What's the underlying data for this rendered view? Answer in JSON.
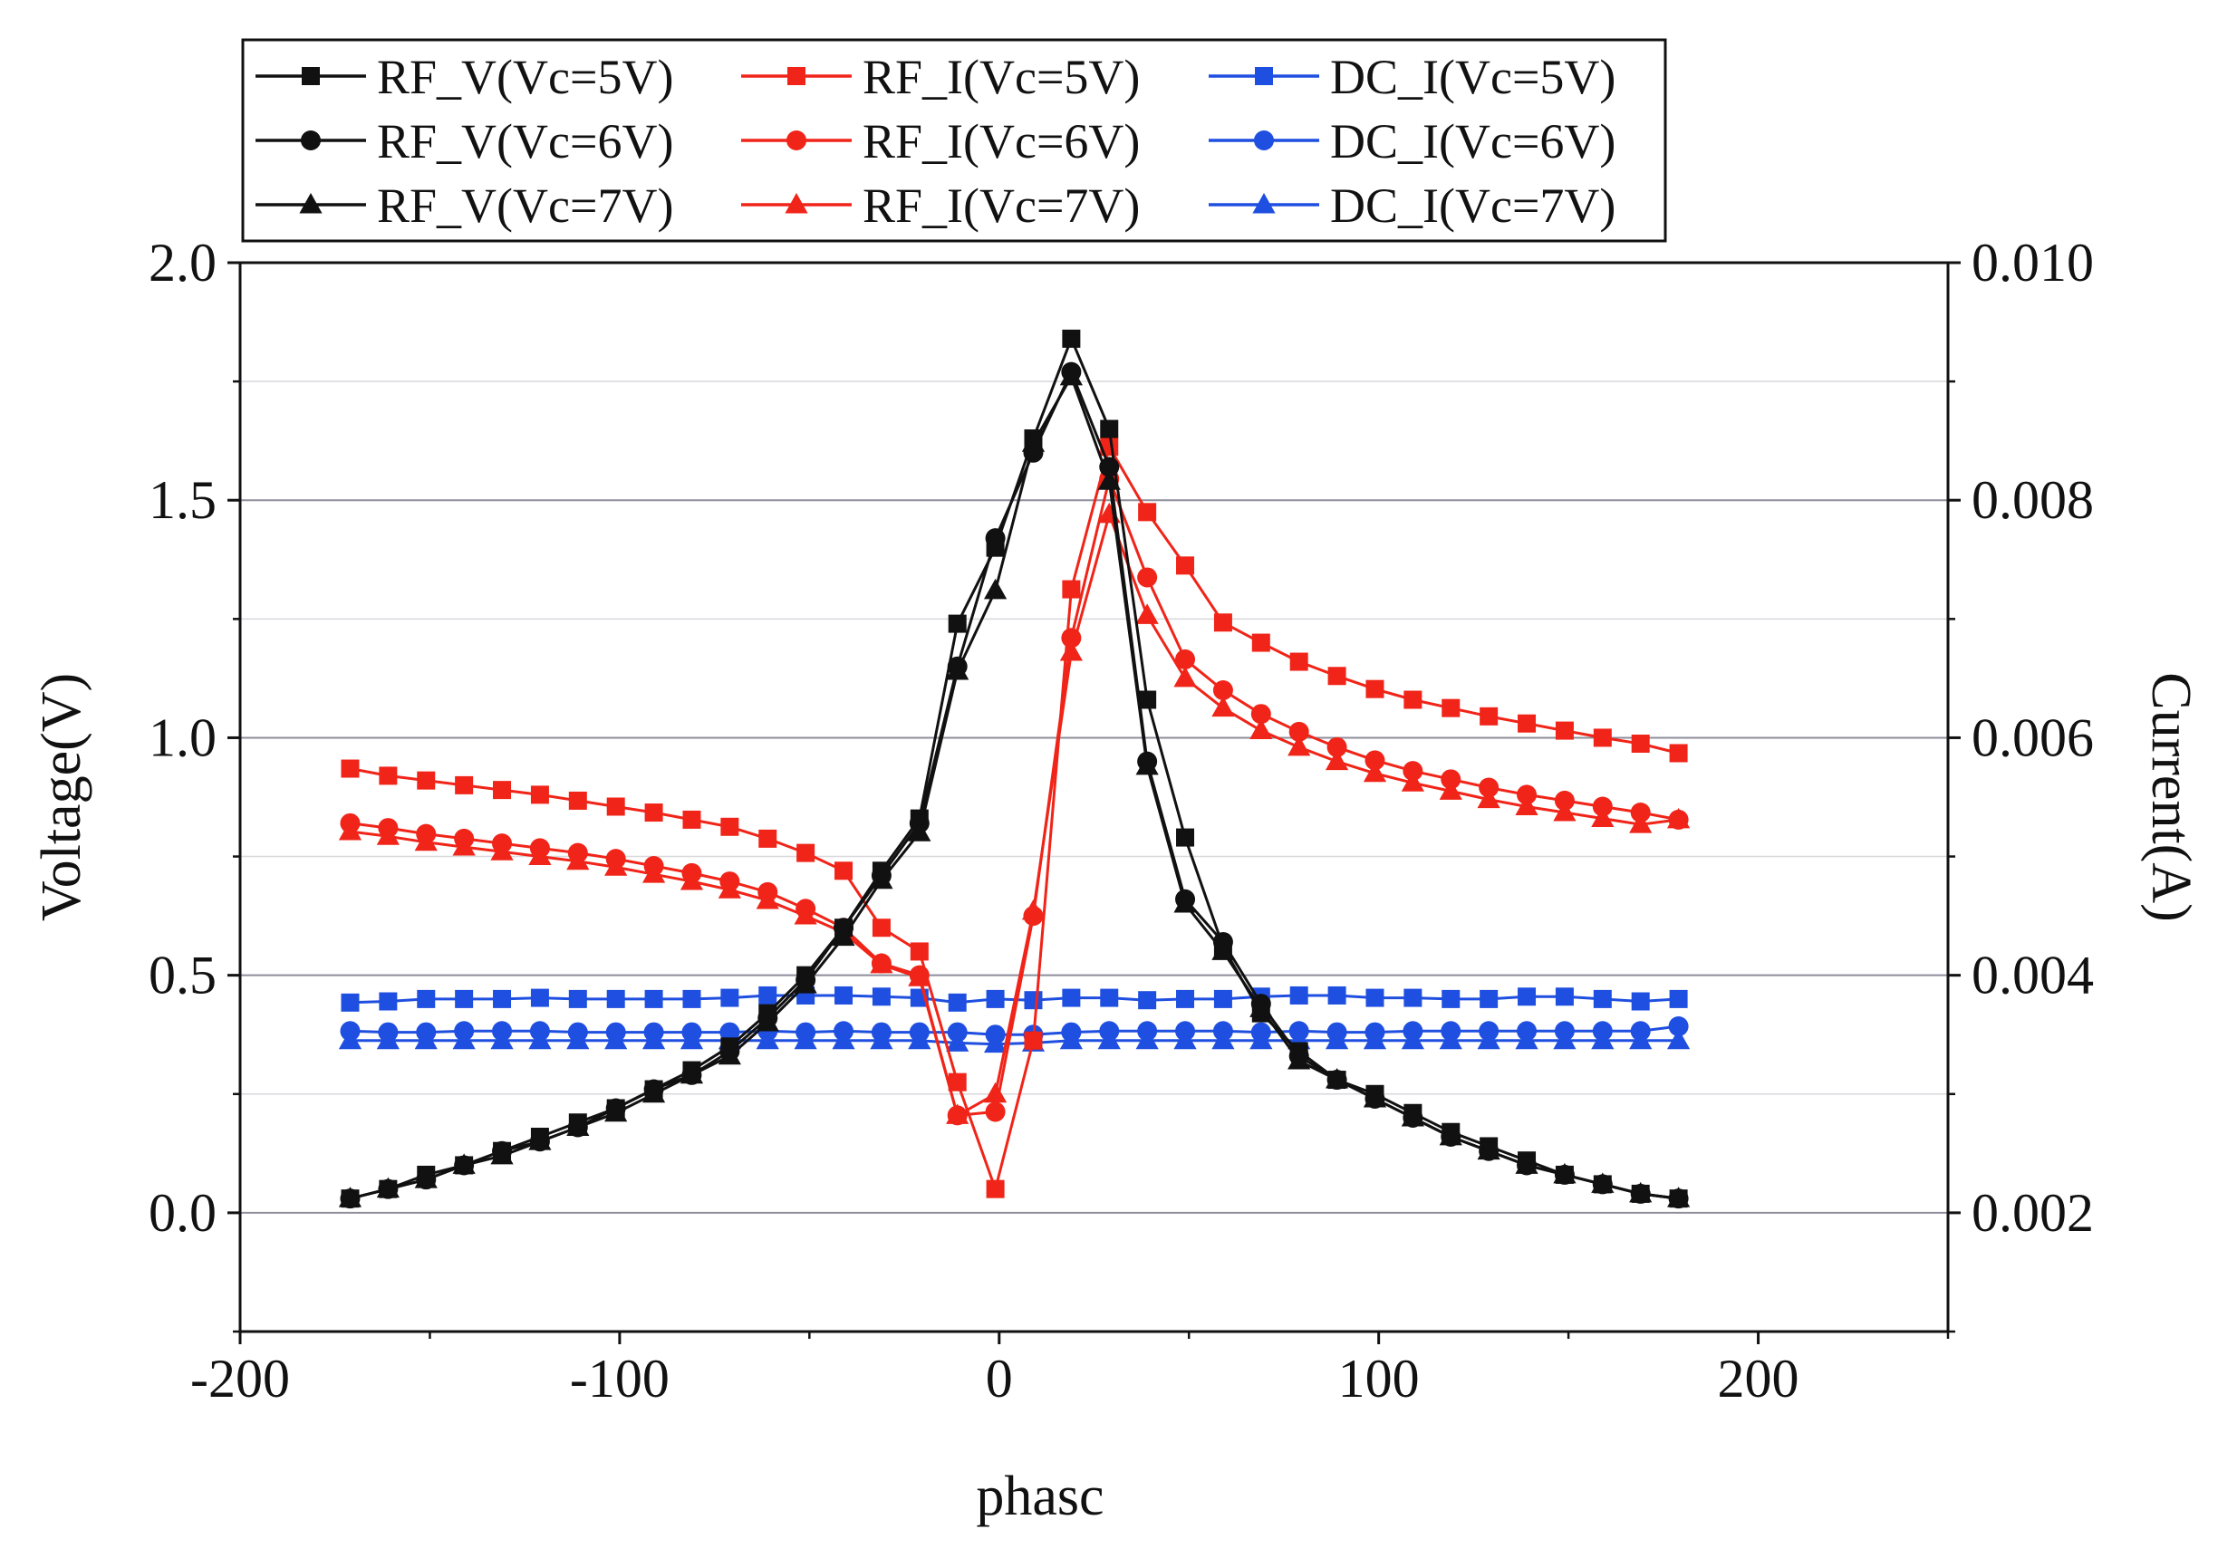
{
  "chart_data": {
    "type": "line",
    "xlabel": "phasc",
    "ylabel_left": "Voltage(V)",
    "ylabel_right": "Current(A)",
    "xlim": [
      -200,
      250
    ],
    "ylim_left": [
      -0.25,
      2.0
    ],
    "ylim_right": [
      0.001,
      0.01
    ],
    "x_ticks": [
      "-200",
      "-100",
      "0",
      "100",
      "200"
    ],
    "y_left_ticks": [
      "0.0",
      "0.5",
      "1.0",
      "1.5",
      "2.0"
    ],
    "y_right_ticks": [
      "0.002",
      "0.004",
      "0.006",
      "0.008",
      "0.010"
    ],
    "grid": true,
    "legend_position": "top",
    "colors": {
      "black": "#111111",
      "red": "#f02418",
      "blue": "#1f4fe0",
      "grid": "#9a9aa6"
    },
    "x": [
      -171,
      -161,
      -151,
      -141,
      -131,
      -121,
      -111,
      -101,
      -91,
      -81,
      -71,
      -61,
      -51,
      -41,
      -31,
      -21,
      -11,
      -1,
      9,
      19,
      29,
      39,
      49,
      59,
      69,
      79,
      89,
      99,
      109,
      119,
      129,
      139,
      149,
      159,
      169,
      179
    ],
    "series": [
      {
        "name": "RF_V(Vc=5V)",
        "label": "RF_V(Vc=5V)",
        "axis": "left",
        "color": "black",
        "marker": "square",
        "values": [
          0.03,
          0.05,
          0.08,
          0.1,
          0.13,
          0.16,
          0.19,
          0.22,
          0.26,
          0.3,
          0.35,
          0.42,
          0.5,
          0.6,
          0.72,
          0.83,
          1.24,
          1.4,
          1.63,
          1.84,
          1.65,
          1.08,
          0.79,
          0.56,
          0.42,
          0.34,
          0.28,
          0.25,
          0.21,
          0.17,
          0.14,
          0.11,
          0.08,
          0.06,
          0.04,
          0.03
        ]
      },
      {
        "name": "RF_V(Vc=6V)",
        "label": "RF_V(Vc=6V)",
        "axis": "left",
        "color": "black",
        "marker": "circle",
        "values": [
          0.03,
          0.05,
          0.07,
          0.1,
          0.13,
          0.15,
          0.18,
          0.22,
          0.26,
          0.29,
          0.34,
          0.41,
          0.49,
          0.6,
          0.71,
          0.82,
          1.15,
          1.42,
          1.6,
          1.77,
          1.57,
          0.95,
          0.66,
          0.57,
          0.44,
          0.33,
          0.28,
          0.24,
          0.2,
          0.16,
          0.13,
          0.1,
          0.08,
          0.06,
          0.04,
          0.03
        ]
      },
      {
        "name": "RF_V(Vc=7V)",
        "label": "RF_V(Vc=7V)",
        "axis": "left",
        "color": "black",
        "marker": "triangle",
        "values": [
          0.03,
          0.05,
          0.07,
          0.1,
          0.12,
          0.15,
          0.18,
          0.21,
          0.25,
          0.29,
          0.33,
          0.4,
          0.48,
          0.58,
          0.7,
          0.8,
          1.14,
          1.31,
          1.62,
          1.76,
          1.54,
          0.94,
          0.65,
          0.55,
          0.43,
          0.32,
          0.28,
          0.24,
          0.2,
          0.16,
          0.13,
          0.1,
          0.08,
          0.06,
          0.04,
          0.03
        ]
      },
      {
        "name": "RF_I(Vc=5V)",
        "label": "RF_I(Vc=5V)",
        "axis": "right",
        "color": "red",
        "marker": "square",
        "values": [
          0.00574,
          0.00568,
          0.00564,
          0.0056,
          0.00556,
          0.00552,
          0.00547,
          0.00542,
          0.00537,
          0.00531,
          0.00525,
          0.00515,
          0.00503,
          0.00488,
          0.0044,
          0.0042,
          0.0031,
          0.0022,
          0.00345,
          0.00725,
          0.00845,
          0.0079,
          0.00745,
          0.00697,
          0.0068,
          0.00664,
          0.00652,
          0.00641,
          0.00632,
          0.00625,
          0.00618,
          0.00612,
          0.00606,
          0.006,
          0.00595,
          0.00587
        ]
      },
      {
        "name": "RF_I(Vc=6V)",
        "label": "RF_I(Vc=6V)",
        "axis": "right",
        "color": "red",
        "marker": "circle",
        "values": [
          0.00528,
          0.00524,
          0.00519,
          0.00515,
          0.00511,
          0.00507,
          0.00503,
          0.00498,
          0.00492,
          0.00486,
          0.00479,
          0.0047,
          0.00456,
          0.0044,
          0.0041,
          0.004,
          0.00282,
          0.00285,
          0.0045,
          0.00684,
          0.00818,
          0.00735,
          0.00666,
          0.0064,
          0.0062,
          0.00605,
          0.00592,
          0.00581,
          0.00572,
          0.00565,
          0.00558,
          0.00552,
          0.00547,
          0.00542,
          0.00537,
          0.00531
        ]
      },
      {
        "name": "RF_I(Vc=7V)",
        "label": "RF_I(Vc=7V)",
        "axis": "right",
        "color": "red",
        "marker": "triangle",
        "values": [
          0.00521,
          0.00517,
          0.00512,
          0.00508,
          0.00504,
          0.005,
          0.00496,
          0.00491,
          0.00485,
          0.00479,
          0.00472,
          0.00463,
          0.0045,
          0.00436,
          0.00409,
          0.00398,
          0.00282,
          0.003,
          0.00454,
          0.00672,
          0.00788,
          0.00703,
          0.0065,
          0.00625,
          0.00606,
          0.00592,
          0.0058,
          0.0057,
          0.00562,
          0.00555,
          0.00548,
          0.00542,
          0.00537,
          0.00532,
          0.00527,
          0.00531
        ]
      },
      {
        "name": "DC_I(Vc=5V)",
        "label": "DC_I(Vc=5V)",
        "axis": "right",
        "color": "blue",
        "marker": "square",
        "values": [
          0.00377,
          0.00378,
          0.0038,
          0.0038,
          0.0038,
          0.00381,
          0.0038,
          0.0038,
          0.0038,
          0.0038,
          0.00381,
          0.00383,
          0.00383,
          0.00383,
          0.00382,
          0.00381,
          0.00377,
          0.0038,
          0.00379,
          0.00381,
          0.00381,
          0.00379,
          0.0038,
          0.0038,
          0.00382,
          0.00383,
          0.00383,
          0.00381,
          0.00381,
          0.0038,
          0.0038,
          0.00382,
          0.00382,
          0.0038,
          0.00378,
          0.0038
        ]
      },
      {
        "name": "DC_I(Vc=6V)",
        "label": "DC_I(Vc=6V)",
        "axis": "right",
        "color": "blue",
        "marker": "circle",
        "values": [
          0.00353,
          0.00352,
          0.00352,
          0.00353,
          0.00353,
          0.00353,
          0.00352,
          0.00352,
          0.00352,
          0.00352,
          0.00352,
          0.00353,
          0.00352,
          0.00353,
          0.00352,
          0.00352,
          0.00352,
          0.0035,
          0.0035,
          0.00352,
          0.00353,
          0.00353,
          0.00353,
          0.00353,
          0.00352,
          0.00353,
          0.00352,
          0.00352,
          0.00353,
          0.00353,
          0.00353,
          0.00353,
          0.00353,
          0.00353,
          0.00353,
          0.00357
        ]
      },
      {
        "name": "DC_I(Vc=7V)",
        "label": "DC_I(Vc=7V)",
        "axis": "right",
        "color": "blue",
        "marker": "triangle",
        "values": [
          0.00345,
          0.00345,
          0.00345,
          0.00345,
          0.00345,
          0.00345,
          0.00345,
          0.00345,
          0.00345,
          0.00345,
          0.00345,
          0.00345,
          0.00345,
          0.00345,
          0.00345,
          0.00345,
          0.00343,
          0.00342,
          0.00343,
          0.00345,
          0.00345,
          0.00345,
          0.00345,
          0.00345,
          0.00345,
          0.00345,
          0.00345,
          0.00345,
          0.00345,
          0.00345,
          0.00345,
          0.00345,
          0.00345,
          0.00345,
          0.00345,
          0.00345
        ]
      }
    ]
  }
}
